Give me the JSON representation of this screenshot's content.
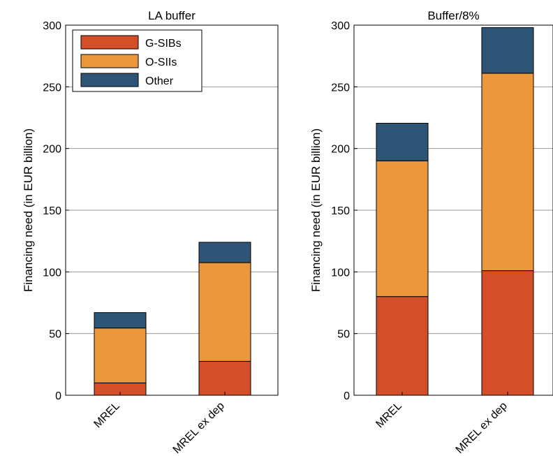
{
  "colors": {
    "G-SIBs": "#d44e2a",
    "O-SIIs": "#ec973c",
    "Other": "#2e5576",
    "grid": "#9a9a9a",
    "axis": "#000000"
  },
  "chart_data": [
    {
      "type": "bar",
      "stacked": true,
      "title": "LA buffer",
      "xlabel": "",
      "ylabel": "Financing need (in EUR billion)",
      "ylim": [
        0,
        300
      ],
      "yticks": [
        "0",
        "50",
        "100",
        "150",
        "200",
        "250",
        "300"
      ],
      "grid": "horizontal",
      "legend": "top-left",
      "categories": [
        "MREL",
        "MREL ex dep"
      ],
      "series": [
        {
          "name": "G-SIBs",
          "values": [
            10,
            27.5
          ]
        },
        {
          "name": "O-SIIs",
          "values": [
            44.5,
            80
          ]
        },
        {
          "name": "Other",
          "values": [
            12.5,
            16.5
          ]
        }
      ]
    },
    {
      "type": "bar",
      "stacked": true,
      "title": "Buffer/8%",
      "xlabel": "",
      "ylabel": "Financing need (in EUR billion)",
      "ylim": [
        0,
        300
      ],
      "yticks": [
        "0",
        "50",
        "100",
        "150",
        "200",
        "250",
        "300"
      ],
      "grid": "horizontal",
      "legend": "",
      "categories": [
        "MREL",
        "MREL ex dep"
      ],
      "series": [
        {
          "name": "G-SIBs",
          "values": [
            80,
            101
          ]
        },
        {
          "name": "O-SIIs",
          "values": [
            110,
            160
          ]
        },
        {
          "name": "Other",
          "values": [
            30.5,
            37
          ]
        }
      ]
    }
  ]
}
